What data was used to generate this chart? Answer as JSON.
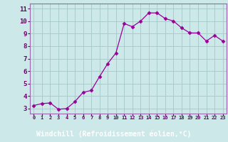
{
  "x": [
    0,
    1,
    2,
    3,
    4,
    5,
    6,
    7,
    8,
    9,
    10,
    11,
    12,
    13,
    14,
    15,
    16,
    17,
    18,
    19,
    20,
    21,
    22,
    23
  ],
  "y": [
    3.25,
    3.4,
    3.45,
    2.95,
    3.0,
    3.55,
    4.3,
    4.45,
    5.55,
    6.6,
    7.45,
    9.8,
    9.55,
    10.0,
    10.65,
    10.65,
    10.2,
    10.0,
    9.45,
    9.05,
    9.05,
    8.4,
    8.85,
    8.4
  ],
  "line_color": "#990099",
  "marker": "D",
  "marker_size": 2.5,
  "bg_color": "#cce8e8",
  "grid_color": "#aacccc",
  "xlabel": "Windchill (Refroidissement éolien,°C)",
  "xlabel_color": "#ffffff",
  "xlabel_bg": "#990099",
  "ytick_labels": [
    "3",
    "4",
    "5",
    "6",
    "7",
    "8",
    "9",
    "10",
    "11"
  ],
  "ytick_vals": [
    3,
    4,
    5,
    6,
    7,
    8,
    9,
    10,
    11
  ],
  "xtick_labels": [
    "0",
    "1",
    "2",
    "3",
    "4",
    "5",
    "6",
    "7",
    "8",
    "9",
    "10",
    "11",
    "12",
    "13",
    "14",
    "15",
    "16",
    "17",
    "18",
    "19",
    "20",
    "21",
    "22",
    "23"
  ],
  "ylim": [
    2.6,
    11.4
  ],
  "xlim": [
    -0.5,
    23.5
  ],
  "spine_color": "#9966aa",
  "tick_color": "#660066"
}
